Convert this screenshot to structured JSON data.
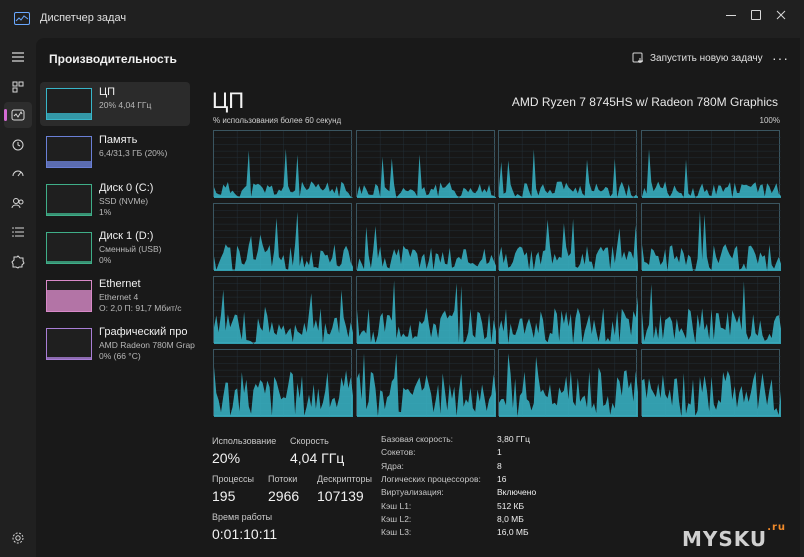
{
  "window": {
    "title": "Диспетчер задач"
  },
  "nav": {
    "items": [
      {
        "icon": "hamburger-menu-icon"
      },
      {
        "icon": "processes-icon"
      },
      {
        "icon": "performance-icon",
        "active": true
      },
      {
        "icon": "app-history-icon"
      },
      {
        "icon": "startup-apps-icon"
      },
      {
        "icon": "users-icon"
      },
      {
        "icon": "details-icon"
      },
      {
        "icon": "services-icon"
      }
    ],
    "settings_icon": "gear-icon"
  },
  "header": {
    "title": "Производительность",
    "run_task": "Запустить новую задачу",
    "more": "···"
  },
  "perf_list": [
    {
      "name": "ЦП",
      "sub1": "20% 4,04 ГГц",
      "sub2": "",
      "color": "#38b6c9",
      "active": true,
      "fill": 0.2
    },
    {
      "name": "Память",
      "sub1": "6,4/31,3 ГБ (20%)",
      "sub2": "",
      "color": "#6a7fd6",
      "active": false,
      "fill": 0.2
    },
    {
      "name": "Диск 0 (C:)",
      "sub1": "SSD (NVMe)",
      "sub2": "1%",
      "color": "#3fae88",
      "active": false,
      "fill": 0.01
    },
    {
      "name": "Диск 1 (D:)",
      "sub1": "Сменный (USB)",
      "sub2": "0%",
      "color": "#3fae88",
      "active": false,
      "fill": 0.0
    },
    {
      "name": "Ethernet",
      "sub1": "Ethernet 4",
      "sub2": "О: 2,0 П: 91,7 Мбит/с",
      "color": "#d889c8",
      "active": false,
      "fill": 0.7
    },
    {
      "name": "Графический про",
      "sub1": "AMD Radeon 780M Grap",
      "sub2": "0% (66 °C)",
      "color": "#a97ed6",
      "active": false,
      "fill": 0.0
    }
  ],
  "cpu": {
    "title": "ЦП",
    "model": "AMD Ryzen 7 8745HS w/ Radeon 780M Graphics",
    "graph_label": "% использования более 60 секунд",
    "graph_max": "100%",
    "graph_color": "#38b6c9"
  },
  "stats": {
    "usage_label": "Использование",
    "usage_value": "20%",
    "speed_label": "Скорость",
    "speed_value": "4,04 ГГц",
    "processes_label": "Процессы",
    "processes_value": "195",
    "threads_label": "Потоки",
    "threads_value": "2966",
    "handles_label": "Дескрипторы",
    "handles_value": "107139",
    "uptime_label": "Время работы",
    "uptime_value": "0:01:10:11"
  },
  "specs": [
    {
      "k": "Базовая скорость:",
      "v": "3,80 ГГц"
    },
    {
      "k": "Сокетов:",
      "v": "1"
    },
    {
      "k": "Ядра:",
      "v": "8"
    },
    {
      "k": "Логических процессоров:",
      "v": "16"
    },
    {
      "k": "Виртуализация:",
      "v": "Включено"
    },
    {
      "k": "Кэш L1:",
      "v": "512 КБ"
    },
    {
      "k": "Кэш L2:",
      "v": "8,0 МБ"
    },
    {
      "k": "Кэш L3:",
      "v": "16,0 МБ"
    }
  ],
  "watermark": {
    "text": "MYSKU",
    "suffix": ".ru"
  }
}
